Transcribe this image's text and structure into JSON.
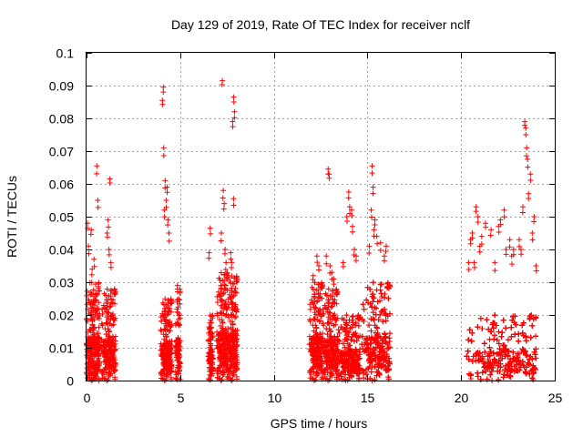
{
  "chart_data": {
    "type": "scatter",
    "title": "Day 129 of 2019, Rate Of TEC Index for receiver nclf",
    "xlabel": "GPS time / hours",
    "ylabel": "ROTI / TECUs",
    "xlim": [
      0,
      25
    ],
    "ylim": [
      0,
      0.1
    ],
    "x_ticks": [
      "0",
      "5",
      "10",
      "15",
      "20",
      "25"
    ],
    "y_ticks": [
      "0",
      "0.01",
      "0.02",
      "0.03",
      "0.04",
      "0.05",
      "0.06",
      "0.07",
      "0.08",
      "0.09",
      "0.1"
    ],
    "grid": true,
    "marker": "+",
    "color": "#ff0000",
    "series": [
      {
        "name": "ROTI",
        "clusters": [
          {
            "x_range": [
              0.0,
              0.7
            ],
            "y_base": [
              0.0,
              0.03
            ],
            "outliers": [
              [
                0.05,
                0.048
              ],
              [
                0.1,
                0.041
              ],
              [
                0.25,
                0.046
              ],
              [
                0.3,
                0.034
              ],
              [
                0.55,
                0.0655
              ],
              [
                0.6,
                0.055
              ],
              [
                0.4,
                0.037
              ]
            ]
          },
          {
            "x_range": [
              0.8,
              1.55
            ],
            "y_base": [
              0.0,
              0.028
            ],
            "outliers": [
              [
                1.25,
                0.0615
              ],
              [
                1.15,
                0.049
              ],
              [
                1.1,
                0.045
              ],
              [
                1.3,
                0.036
              ],
              [
                1.2,
                0.04
              ]
            ]
          },
          {
            "x_range": [
              3.95,
              4.55
            ],
            "y_base": [
              0.0,
              0.025
            ],
            "outliers": [
              [
                4.1,
                0.0895
              ],
              [
                4.05,
                0.0855
              ],
              [
                4.12,
                0.071
              ],
              [
                4.2,
                0.061
              ],
              [
                4.3,
                0.059
              ],
              [
                4.25,
                0.055
              ],
              [
                4.35,
                0.049
              ],
              [
                4.15,
                0.052
              ],
              [
                4.4,
                0.045
              ]
            ]
          },
          {
            "x_range": [
              4.75,
              5.0
            ],
            "y_base": [
              0.0,
              0.028
            ],
            "outliers": [
              [
                4.85,
                0.029
              ]
            ]
          },
          {
            "x_range": [
              6.5,
              6.75
            ],
            "y_base": [
              0.0,
              0.02
            ],
            "outliers": [
              [
                6.6,
                0.0465
              ],
              [
                6.55,
                0.039
              ]
            ]
          },
          {
            "x_range": [
              6.95,
              7.55
            ],
            "y_base": [
              0.0,
              0.033
            ],
            "outliers": [
              [
                7.25,
                0.0915
              ],
              [
                7.3,
                0.058
              ],
              [
                7.35,
                0.054
              ],
              [
                7.2,
                0.045
              ],
              [
                7.4,
                0.04
              ],
              [
                7.45,
                0.036
              ]
            ]
          },
          {
            "x_range": [
              7.55,
              8.05
            ],
            "y_base": [
              0.0,
              0.032
            ],
            "outliers": [
              [
                7.85,
                0.0865
              ],
              [
                7.9,
                0.082
              ],
              [
                7.8,
                0.079
              ],
              [
                7.85,
                0.0555
              ],
              [
                7.7,
                0.039
              ],
              [
                7.75,
                0.036
              ]
            ]
          },
          {
            "x_range": [
              11.9,
              12.6
            ],
            "y_base": [
              0.0,
              0.03
            ],
            "outliers": [
              [
                12.3,
                0.038
              ],
              [
                12.4,
                0.035
              ],
              [
                12.1,
                0.032
              ]
            ]
          },
          {
            "x_range": [
              12.6,
              13.4
            ],
            "y_base": [
              0.0,
              0.028
            ],
            "outliers": [
              [
                12.9,
                0.0645
              ],
              [
                12.95,
                0.063
              ],
              [
                12.8,
                0.038
              ],
              [
                13.0,
                0.035
              ],
              [
                13.2,
                0.031
              ],
              [
                13.1,
                0.033
              ]
            ]
          },
          {
            "x_range": [
              13.4,
              14.6
            ],
            "y_base": [
              0.0,
              0.02
            ],
            "outliers": [
              [
                14.0,
                0.0575
              ],
              [
                14.05,
                0.053
              ],
              [
                13.9,
                0.05
              ],
              [
                14.15,
                0.052
              ],
              [
                14.3,
                0.04
              ],
              [
                13.7,
                0.036
              ],
              [
                14.4,
                0.038
              ],
              [
                14.2,
                0.047
              ]
            ]
          },
          {
            "x_range": [
              14.7,
              16.2
            ],
            "y_base": [
              0.0,
              0.03
            ],
            "outliers": [
              [
                15.25,
                0.0655
              ],
              [
                15.3,
                0.059
              ],
              [
                15.2,
                0.052
              ],
              [
                15.35,
                0.046
              ],
              [
                15.1,
                0.041
              ],
              [
                15.4,
                0.049
              ],
              [
                15.7,
                0.042
              ],
              [
                15.9,
                0.038
              ],
              [
                16.0,
                0.041
              ],
              [
                15.5,
                0.044
              ]
            ]
          },
          {
            "x_range": [
              20.3,
              24.0
            ],
            "y_base": [
              0.0,
              0.02
            ],
            "outliers": [
              [
                23.4,
                0.079
              ],
              [
                23.45,
                0.077
              ],
              [
                23.5,
                0.071
              ],
              [
                23.55,
                0.0675
              ],
              [
                23.7,
                0.063
              ],
              [
                23.6,
                0.057
              ],
              [
                23.3,
                0.053
              ],
              [
                22.3,
                0.052
              ],
              [
                22.1,
                0.049
              ],
              [
                22.0,
                0.047
              ],
              [
                21.6,
                0.046
              ],
              [
                21.3,
                0.048
              ],
              [
                20.8,
                0.053
              ],
              [
                20.9,
                0.05
              ],
              [
                20.6,
                0.045
              ],
              [
                20.5,
                0.043
              ],
              [
                21.1,
                0.044
              ],
              [
                22.6,
                0.043
              ],
              [
                22.8,
                0.04
              ],
              [
                23.1,
                0.043
              ],
              [
                23.9,
                0.05
              ],
              [
                23.8,
                0.045
              ],
              [
                22.7,
                0.038
              ],
              [
                21.8,
                0.036
              ],
              [
                21.0,
                0.041
              ],
              [
                20.7,
                0.036
              ],
              [
                24.0,
                0.035
              ],
              [
                23.2,
                0.04
              ],
              [
                20.4,
                0.036
              ],
              [
                22.4,
                0.04
              ]
            ]
          }
        ]
      }
    ]
  }
}
